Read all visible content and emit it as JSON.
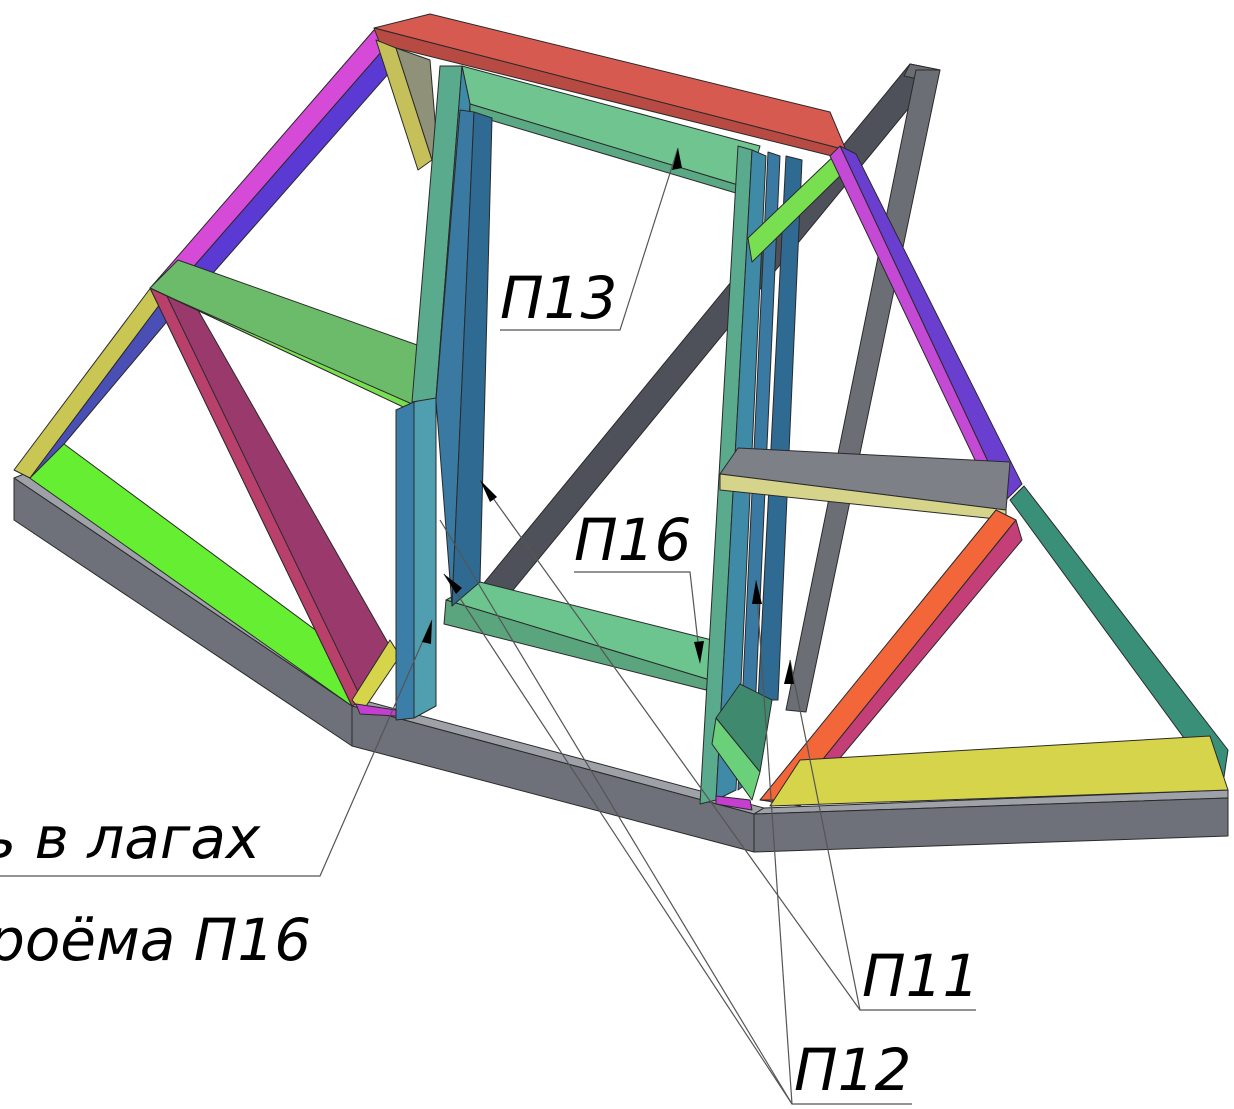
{
  "labels": {
    "p13": "П13",
    "p16": "П16",
    "p11": "П11",
    "p12": "П12",
    "note_line1": "ь в лагах",
    "note_line2": "роёма П16"
  },
  "colors": {
    "base_top": "#8f929a",
    "base_side": "#6d7078",
    "green_bright": "#66ee33",
    "yellow": "#d6d44a",
    "teal_green": "#6fc890",
    "blue_post": "#3f7ea8",
    "magenta": "#c43fd0",
    "purple": "#6a3fd0",
    "red_top": "#d85a52",
    "crimson": "#b8406a",
    "orange": "#f2663a",
    "grey_beam": "#7c7e86",
    "dark_diag": "#55575f",
    "dark_teal": "#3a8f78"
  }
}
